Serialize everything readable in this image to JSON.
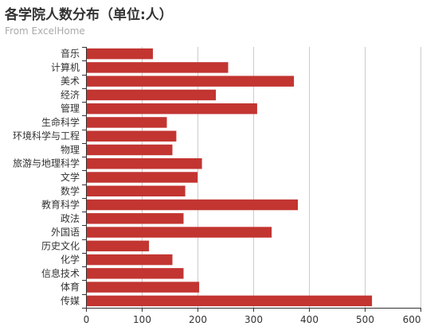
{
  "chart_data": {
    "type": "bar",
    "orientation": "horizontal",
    "title": "各学院人数分布（单位:人）",
    "subtitle": "From ExcelHome",
    "categories": [
      "音乐",
      "计算机",
      "美术",
      "经济",
      "管理",
      "生命科学",
      "环境科学与工程",
      "物理",
      "旅游与地理科学",
      "文学",
      "数学",
      "教育科学",
      "政法",
      "外国语",
      "历史文化",
      "化学",
      "信息技术",
      "体育",
      "传媒"
    ],
    "values": [
      120,
      255,
      373,
      233,
      307,
      145,
      162,
      155,
      208,
      200,
      178,
      380,
      175,
      333,
      113,
      155,
      175,
      203,
      513
    ],
    "xlim": [
      0,
      600
    ],
    "xticks": [
      0,
      100,
      200,
      300,
      400,
      500,
      600
    ],
    "grid": true,
    "colors": {
      "bar": "#c23531",
      "grid": "#cccccc",
      "axis": "#333333"
    }
  }
}
